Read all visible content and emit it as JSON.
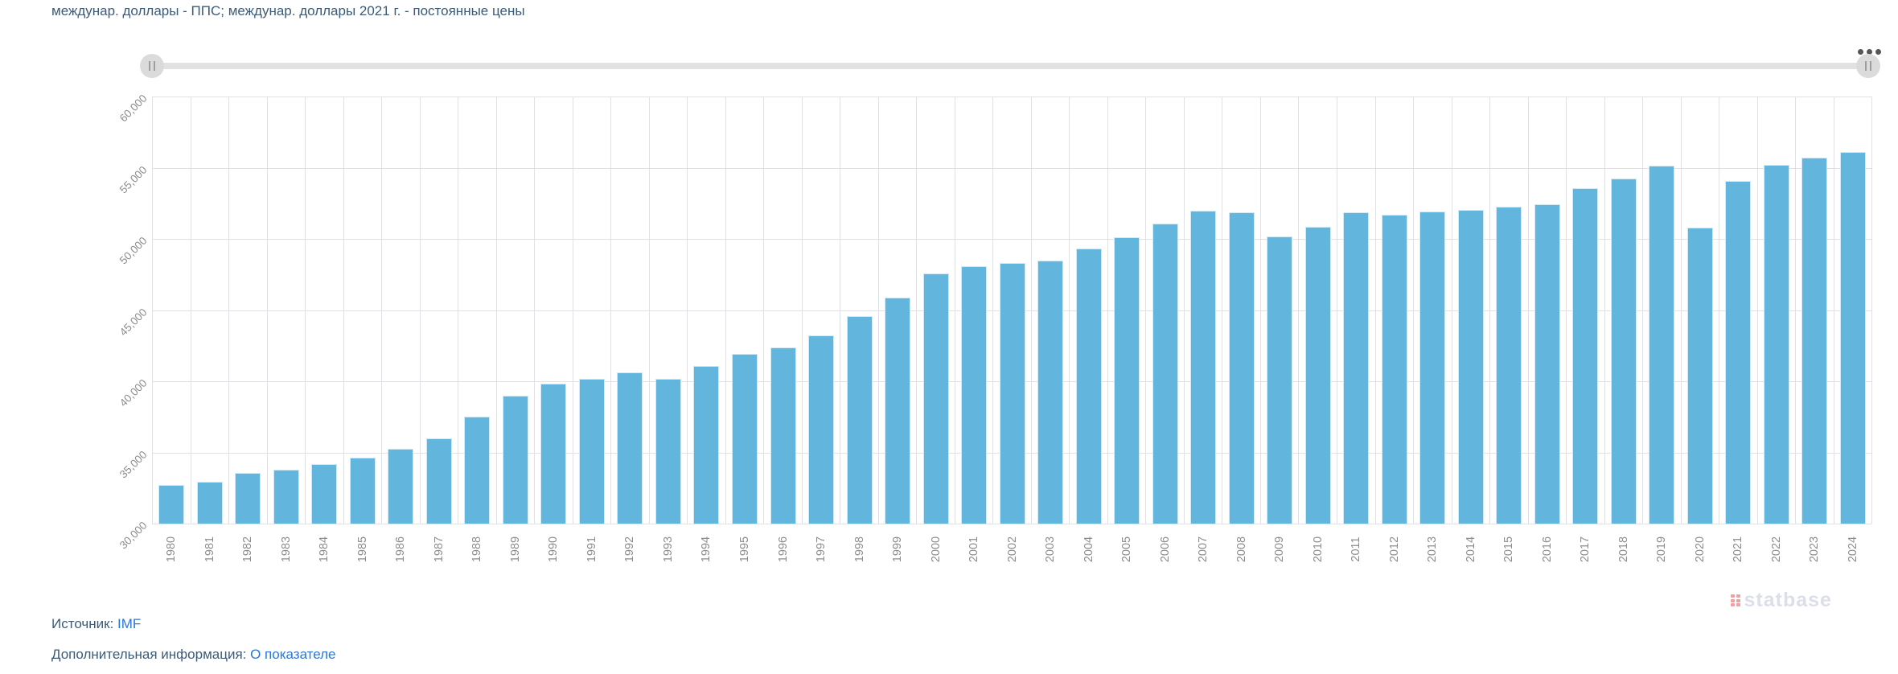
{
  "title": "междунар. доллары - ППС; междунар. доллары 2021 г. - постоянные цены",
  "toolbar": {
    "menu_icon": "three-dots"
  },
  "slider": {
    "handle_glyph": "drag-grip"
  },
  "chart_data": {
    "type": "bar",
    "title": "междунар. доллары - ППС; междунар. доллары 2021 г. - постоянные цены",
    "categories": [
      "1980",
      "1981",
      "1982",
      "1983",
      "1984",
      "1985",
      "1986",
      "1987",
      "1988",
      "1989",
      "1990",
      "1991",
      "1992",
      "1993",
      "1994",
      "1995",
      "1996",
      "1997",
      "1998",
      "1999",
      "2000",
      "2001",
      "2002",
      "2003",
      "2004",
      "2005",
      "2006",
      "2007",
      "2008",
      "2009",
      "2010",
      "2011",
      "2012",
      "2013",
      "2014",
      "2015",
      "2016",
      "2017",
      "2018",
      "2019",
      "2020",
      "2021",
      "2022",
      "2023",
      "2024"
    ],
    "values": [
      32700,
      32950,
      33550,
      33800,
      34200,
      34650,
      35250,
      36000,
      37500,
      39000,
      39850,
      40200,
      40600,
      40200,
      41050,
      41900,
      42350,
      43250,
      44600,
      45900,
      47600,
      48100,
      48300,
      48500,
      49350,
      50100,
      51050,
      52000,
      51850,
      50150,
      50850,
      51850,
      51700,
      51950,
      52050,
      52250,
      52450,
      53550,
      54250,
      55150,
      50800,
      54050,
      55200,
      55700,
      56100
    ],
    "xlabel": "",
    "ylabel": "",
    "ylim": [
      30000,
      60000
    ],
    "ytick_step": 5000,
    "ytick_labels": [
      "30,000",
      "35,000",
      "40,000",
      "45,000",
      "50,000",
      "55,000",
      "60,000"
    ],
    "grid": true,
    "legend": "none",
    "bar_color": "#62b5dd",
    "x_label_rotation": -90,
    "y_label_rotation": -45
  },
  "watermark": {
    "text": "statbase",
    "logo": "dots-grid-icon"
  },
  "footer": {
    "source_label": "Источник:",
    "source_link": "IMF",
    "info_label": "Дополнительная информация:",
    "info_link": "О показателе"
  }
}
